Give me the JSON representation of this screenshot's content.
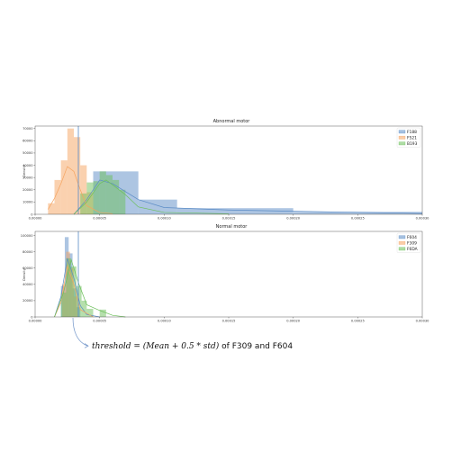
{
  "annotation": {
    "math": "threshold = (Mean + 0.5 * std)",
    "rest": " of F309 and F604"
  },
  "chart_data": [
    {
      "type": "histogram",
      "title": "Abnormal motor",
      "ylabel": "Density",
      "xlabel": "",
      "xlim": [
        0.0,
        0.0003
      ],
      "ylim": [
        0,
        72000
      ],
      "xticks": [
        "0.00000",
        "0.00005",
        "0.00010",
        "0.00015",
        "0.00020",
        "0.00025",
        "0.00030"
      ],
      "yticks": [
        "0",
        "10000",
        "20000",
        "30000",
        "40000",
        "50000",
        "60000",
        "70000"
      ],
      "legend_position": "top-right",
      "threshold_x": 3.35e-05,
      "grid": false,
      "series": [
        {
          "name": "F188",
          "color": "#5b8cc6",
          "bins": [
            [
              4.5e-05,
              8e-05,
              35000
            ],
            [
              8e-05,
              0.00011,
              12000
            ],
            [
              0.00011,
              0.0002,
              5000
            ],
            [
              0.0002,
              0.0003,
              2000
            ]
          ],
          "kde": [
            [
              3e-05,
              0
            ],
            [
              4e-05,
              12000
            ],
            [
              5e-05,
              28000
            ],
            [
              6e-05,
              25000
            ],
            [
              8e-05,
              12000
            ],
            [
              0.0001,
              5500
            ],
            [
              0.00015,
              3500
            ],
            [
              0.0002,
              2500
            ],
            [
              0.00025,
              1600
            ],
            [
              0.0003,
              700
            ]
          ]
        },
        {
          "name": "F521",
          "color": "#f5a460",
          "bins": [
            [
              1e-05,
              1.5e-05,
              9000
            ],
            [
              1.5e-05,
              2e-05,
              28000
            ],
            [
              2e-05,
              2.5e-05,
              44000
            ],
            [
              2.5e-05,
              3e-05,
              70000
            ],
            [
              3e-05,
              3.5e-05,
              63000
            ],
            [
              3.5e-05,
              4e-05,
              40000
            ],
            [
              4e-05,
              4.5e-05,
              18000
            ]
          ],
          "kde": [
            [
              1e-05,
              4000
            ],
            [
              1.5e-05,
              13000
            ],
            [
              2e-05,
              25000
            ],
            [
              2.5e-05,
              39000
            ],
            [
              3e-05,
              35000
            ],
            [
              3.5e-05,
              20000
            ],
            [
              4e-05,
              7000
            ],
            [
              5e-05,
              1500
            ],
            [
              6e-05,
              500
            ]
          ]
        },
        {
          "name": "B193",
          "color": "#6cbf5a",
          "bins": [
            [
              3.5e-05,
              4e-05,
              17000
            ],
            [
              4e-05,
              4.5e-05,
              26000
            ],
            [
              4.5e-05,
              5e-05,
              27000
            ],
            [
              5e-05,
              5.5e-05,
              35000
            ],
            [
              5.5e-05,
              6e-05,
              32000
            ],
            [
              6e-05,
              6.5e-05,
              28000
            ],
            [
              6.5e-05,
              7e-05,
              20000
            ]
          ],
          "kde": [
            [
              3e-05,
              0
            ],
            [
              4e-05,
              10000
            ],
            [
              5e-05,
              25000
            ],
            [
              5.5e-05,
              28000
            ],
            [
              6e-05,
              24000
            ],
            [
              7e-05,
              16000
            ],
            [
              8e-05,
              6000
            ],
            [
              0.0001,
              1500
            ],
            [
              0.00015,
              400
            ]
          ]
        }
      ]
    },
    {
      "type": "histogram",
      "title": "Normal motor",
      "ylabel": "Density",
      "xlabel": "",
      "xlim": [
        0.0,
        0.0003
      ],
      "ylim": [
        0,
        105000
      ],
      "xticks": [
        "0.00000",
        "0.00005",
        "0.00010",
        "0.00015",
        "0.00020",
        "0.00025",
        "0.00030"
      ],
      "yticks": [
        "0",
        "20000",
        "40000",
        "60000",
        "80000",
        "100000"
      ],
      "legend_position": "top-right",
      "threshold_x": 3.35e-05,
      "grid": false,
      "series": [
        {
          "name": "F604",
          "color": "#5b8cc6",
          "bins": [
            [
              2e-05,
              2.3e-05,
              38000
            ],
            [
              2.3e-05,
              2.6e-05,
              98000
            ],
            [
              2.6e-05,
              2.9e-05,
              78000
            ],
            [
              2.9e-05,
              3.2e-05,
              35000
            ],
            [
              3.2e-05,
              3.5e-05,
              12000
            ]
          ],
          "kde": [
            [
              1.5e-05,
              0
            ],
            [
              2e-05,
              25000
            ],
            [
              2.5e-05,
              72000
            ],
            [
              3e-05,
              48000
            ],
            [
              3.5e-05,
              14000
            ],
            [
              4e-05,
              3000
            ],
            [
              5e-05,
              0
            ]
          ]
        },
        {
          "name": "F309",
          "color": "#f5a460",
          "bins": [
            [
              2.1e-05,
              2.4e-05,
              40000
            ],
            [
              2.4e-05,
              2.7e-05,
              80000
            ],
            [
              2.7e-05,
              3e-05,
              60000
            ],
            [
              3e-05,
              3.3e-05,
              25000
            ]
          ],
          "kde": [
            [
              1.5e-05,
              0
            ],
            [
              2e-05,
              18000
            ],
            [
              2.5e-05,
              62000
            ],
            [
              3e-05,
              40000
            ],
            [
              3.5e-05,
              9000
            ],
            [
              4.5e-05,
              0
            ]
          ]
        },
        {
          "name": "F6DA",
          "color": "#6cbf5a",
          "bins": [
            [
              2e-05,
              2.4e-05,
              30000
            ],
            [
              2.4e-05,
              2.8e-05,
              72000
            ],
            [
              2.8e-05,
              3.2e-05,
              62000
            ],
            [
              3.2e-05,
              3.6e-05,
              38000
            ],
            [
              3.6e-05,
              4e-05,
              20000
            ],
            [
              4e-05,
              4.5e-05,
              10000
            ],
            [
              5e-05,
              5.5e-05,
              9000
            ]
          ],
          "kde": [
            [
              1.5e-05,
              0
            ],
            [
              2.2e-05,
              30000
            ],
            [
              2.8e-05,
              70000
            ],
            [
              3.4e-05,
              40000
            ],
            [
              4e-05,
              15000
            ],
            [
              5e-05,
              8000
            ],
            [
              6e-05,
              2000
            ],
            [
              7e-05,
              0
            ]
          ]
        }
      ]
    }
  ]
}
